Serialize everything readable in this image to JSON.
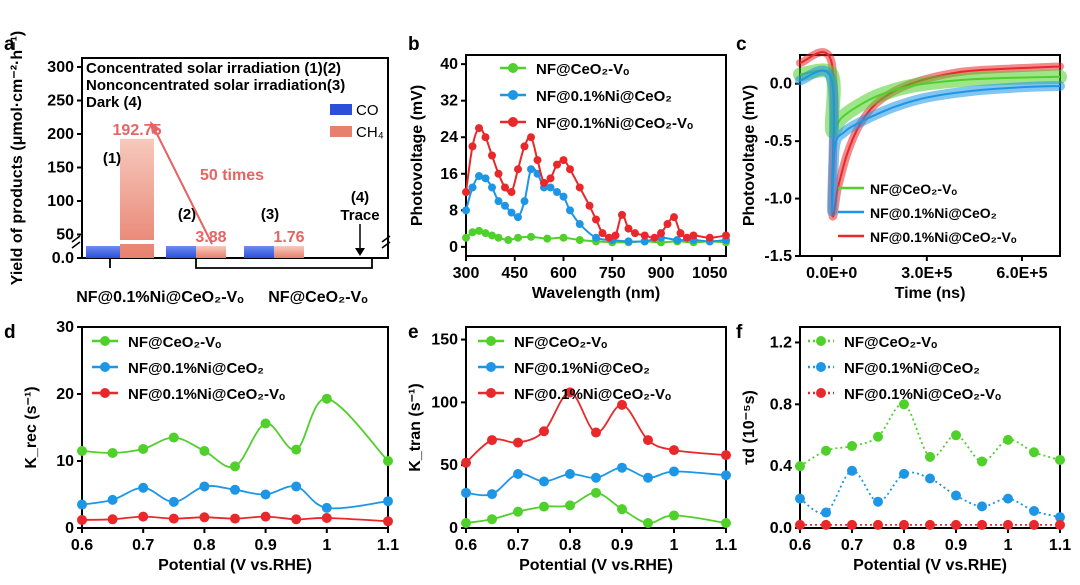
{
  "panel_labels": [
    "a",
    "b",
    "c",
    "d",
    "e",
    "f"
  ],
  "colors": {
    "green": "#4fd02a",
    "blue": "#1e96e6",
    "red": "#e8282a",
    "co_bar": "#2b4fd8",
    "ch4_bar": "#e8806e",
    "annotation": "#e86464"
  },
  "chart_data": [
    {
      "id": "a",
      "type": "bar",
      "ylabel": "Yield of products (μmol·cm⁻²·h⁻¹)",
      "yticks": [
        "0.0",
        "50",
        "100",
        "150",
        "200",
        "250",
        "300"
      ],
      "legend_text": [
        "Concentrated solar irradiation (1)(2)",
        "Nonconcentrated solar irradiation(3)",
        "Dark (4)"
      ],
      "legend": [
        "CO",
        "CH₄"
      ],
      "groups": [
        {
          "label": "(1)",
          "co": 0.6,
          "ch4": 192.75,
          "value_label": "192.75"
        },
        {
          "label": "(2)",
          "co": 0.3,
          "ch4": 3.88,
          "value_label": "3.88"
        },
        {
          "label": "(3)",
          "co": 0.2,
          "ch4": 1.76,
          "value_label": "1.76"
        },
        {
          "label": "(4)",
          "co": 0,
          "ch4": 0,
          "value_label": "Trace"
        }
      ],
      "annotation": "50 times",
      "xlabels": [
        "NF@0.1%Ni@CeO₂-Vₒ",
        "NF@CeO₂-Vₒ"
      ]
    },
    {
      "id": "b",
      "type": "line",
      "xlabel": "Wavelength (nm)",
      "ylabel": "Photovoltage (mV)",
      "xlim": [
        300,
        1100
      ],
      "ylim": [
        -2,
        42
      ],
      "xticks": [
        300,
        450,
        600,
        750,
        900,
        1050
      ],
      "yticks": [
        0,
        8,
        16,
        24,
        32,
        40
      ],
      "series": [
        {
          "name": "NF@CeO₂-Vₒ",
          "color": "green",
          "points": [
            [
              300,
              2
            ],
            [
              320,
              3.2
            ],
            [
              340,
              3.5
            ],
            [
              360,
              3
            ],
            [
              380,
              2.5
            ],
            [
              400,
              2
            ],
            [
              430,
              1.5
            ],
            [
              460,
              2
            ],
            [
              500,
              2.2
            ],
            [
              550,
              1.8
            ],
            [
              600,
              2
            ],
            [
              650,
              1.5
            ],
            [
              700,
              1.2
            ],
            [
              750,
              1
            ],
            [
              800,
              1
            ],
            [
              850,
              1.2
            ],
            [
              900,
              1
            ],
            [
              950,
              1.2
            ],
            [
              1000,
              1
            ],
            [
              1050,
              1.2
            ],
            [
              1100,
              1
            ]
          ]
        },
        {
          "name": "NF@0.1%Ni@CeO₂",
          "color": "blue",
          "points": [
            [
              300,
              8
            ],
            [
              320,
              13
            ],
            [
              340,
              15.5
            ],
            [
              360,
              15
            ],
            [
              380,
              13
            ],
            [
              400,
              10
            ],
            [
              420,
              9
            ],
            [
              440,
              7.5
            ],
            [
              460,
              6.5
            ],
            [
              480,
              10
            ],
            [
              500,
              17
            ],
            [
              520,
              16
            ],
            [
              540,
              13
            ],
            [
              560,
              13
            ],
            [
              580,
              12
            ],
            [
              600,
              11
            ],
            [
              620,
              8
            ],
            [
              650,
              5
            ],
            [
              700,
              2
            ],
            [
              750,
              1.5
            ],
            [
              800,
              1.2
            ],
            [
              850,
              1.2
            ],
            [
              900,
              2
            ],
            [
              950,
              1.5
            ],
            [
              1000,
              1.5
            ],
            [
              1050,
              1.2
            ],
            [
              1100,
              1.5
            ]
          ]
        },
        {
          "name": "NF@0.1%Ni@CeO₂-Vₒ",
          "color": "red",
          "points": [
            [
              300,
              12
            ],
            [
              320,
              22
            ],
            [
              340,
              26
            ],
            [
              360,
              24
            ],
            [
              380,
              20
            ],
            [
              400,
              16
            ],
            [
              420,
              13
            ],
            [
              440,
              12
            ],
            [
              460,
              17
            ],
            [
              480,
              22
            ],
            [
              500,
              24
            ],
            [
              520,
              19
            ],
            [
              540,
              14
            ],
            [
              560,
              15
            ],
            [
              580,
              18
            ],
            [
              600,
              19
            ],
            [
              620,
              17
            ],
            [
              650,
              13
            ],
            [
              680,
              9
            ],
            [
              700,
              6
            ],
            [
              720,
              3
            ],
            [
              740,
              2
            ],
            [
              760,
              2.5
            ],
            [
              780,
              7
            ],
            [
              800,
              4
            ],
            [
              820,
              3
            ],
            [
              850,
              2.5
            ],
            [
              880,
              2
            ],
            [
              900,
              3
            ],
            [
              920,
              5
            ],
            [
              940,
              6.5
            ],
            [
              960,
              3
            ],
            [
              980,
              2
            ],
            [
              1000,
              2.5
            ],
            [
              1050,
              2
            ],
            [
              1100,
              2.5
            ]
          ]
        }
      ]
    },
    {
      "id": "c",
      "type": "line",
      "xlabel": "Time (ns)",
      "ylabel": "Photovoltage (mV)",
      "xlim": [
        -100000,
        720000
      ],
      "ylim": [
        -1.5,
        0.25
      ],
      "xticks": [
        0,
        300000,
        600000
      ],
      "xtick_labels": [
        "0.0E+0",
        "3.0E+5",
        "6.0E+5"
      ],
      "yticks": [
        0.0,
        -0.5,
        -1.0,
        -1.5
      ],
      "ytick_labels": [
        "0.0",
        "-0.5",
        "-1.0",
        "-1.5"
      ],
      "series": [
        {
          "name": "NF@CeO₂-Vₒ",
          "color": "green",
          "points": [
            [
              -100000,
              0.08
            ],
            [
              0,
              0.08
            ],
            [
              1000,
              -0.4
            ],
            [
              30000,
              -0.3
            ],
            [
              80000,
              -0.2
            ],
            [
              150000,
              -0.1
            ],
            [
              250000,
              -0.02
            ],
            [
              400000,
              0.03
            ],
            [
              550000,
              0.05
            ],
            [
              720000,
              0.06
            ]
          ]
        },
        {
          "name": "NF@0.1%Ni@CeO₂",
          "color": "blue",
          "points": [
            [
              -100000,
              0.03
            ],
            [
              0,
              0.03
            ],
            [
              1000,
              -1.1
            ],
            [
              10000,
              -0.55
            ],
            [
              40000,
              -0.42
            ],
            [
              100000,
              -0.32
            ],
            [
              200000,
              -0.2
            ],
            [
              300000,
              -0.12
            ],
            [
              450000,
              -0.06
            ],
            [
              600000,
              -0.03
            ],
            [
              720000,
              -0.02
            ]
          ]
        },
        {
          "name": "NF@0.1%Ni@CeO₂-Vₒ",
          "color": "red",
          "points": [
            [
              -100000,
              0.18
            ],
            [
              0,
              0.18
            ],
            [
              1000,
              -1.1
            ],
            [
              20000,
              -0.9
            ],
            [
              50000,
              -0.6
            ],
            [
              90000,
              -0.35
            ],
            [
              150000,
              -0.15
            ],
            [
              250000,
              0.0
            ],
            [
              400000,
              0.1
            ],
            [
              550000,
              0.13
            ],
            [
              720000,
              0.15
            ]
          ]
        }
      ]
    },
    {
      "id": "d",
      "type": "line",
      "xlabel": "Potential (V vs.RHE)",
      "ylabel": "K_rec (s⁻¹)",
      "xlim": [
        0.6,
        1.1
      ],
      "ylim": [
        0,
        30
      ],
      "xticks": [
        0.6,
        0.7,
        0.8,
        0.9,
        1.0,
        1.1
      ],
      "yticks": [
        0,
        10,
        20,
        30
      ],
      "series": [
        {
          "name": "NF@CeO₂-Vₒ",
          "color": "green",
          "x": [
            0.6,
            0.65,
            0.7,
            0.75,
            0.8,
            0.85,
            0.9,
            0.95,
            1.0,
            1.1
          ],
          "values": [
            11.5,
            11.2,
            11.8,
            13.5,
            11.5,
            9.2,
            15.6,
            11.7,
            19.3,
            10.0
          ]
        },
        {
          "name": "NF@0.1%Ni@CeO₂",
          "color": "blue",
          "x": [
            0.6,
            0.65,
            0.7,
            0.75,
            0.8,
            0.85,
            0.9,
            0.95,
            1.0,
            1.1
          ],
          "values": [
            3.5,
            4.2,
            6.0,
            3.9,
            6.2,
            5.7,
            5.0,
            6.2,
            3.0,
            4.0
          ]
        },
        {
          "name": "NF@0.1%Ni@CeO₂-Vₒ",
          "color": "red",
          "x": [
            0.6,
            0.65,
            0.7,
            0.75,
            0.8,
            0.85,
            0.9,
            0.95,
            1.0,
            1.1
          ],
          "values": [
            1.2,
            1.3,
            1.7,
            1.4,
            1.6,
            1.4,
            1.7,
            1.3,
            1.5,
            1.0
          ]
        }
      ]
    },
    {
      "id": "e",
      "type": "line",
      "xlabel": "Potential (V vs.RHE)",
      "ylabel": "K_tran (s⁻¹)",
      "xlim": [
        0.6,
        1.1
      ],
      "ylim": [
        0,
        160
      ],
      "xticks": [
        0.6,
        0.7,
        0.8,
        0.9,
        1.0,
        1.1
      ],
      "yticks": [
        0,
        50,
        100,
        150
      ],
      "series": [
        {
          "name": "NF@CeO₂-Vₒ",
          "color": "green",
          "x": [
            0.6,
            0.65,
            0.7,
            0.75,
            0.8,
            0.85,
            0.9,
            0.95,
            1.0,
            1.1
          ],
          "values": [
            4,
            7,
            13,
            17,
            18,
            28,
            15,
            4,
            10,
            4
          ]
        },
        {
          "name": "NF@0.1%Ni@CeO₂",
          "color": "blue",
          "x": [
            0.6,
            0.65,
            0.7,
            0.75,
            0.8,
            0.85,
            0.9,
            0.95,
            1.0,
            1.1
          ],
          "values": [
            28,
            27,
            43,
            37,
            43,
            40,
            48,
            40,
            45,
            42
          ]
        },
        {
          "name": "NF@0.1%Ni@CeO₂-Vₒ",
          "color": "red",
          "x": [
            0.6,
            0.65,
            0.7,
            0.75,
            0.8,
            0.85,
            0.9,
            0.95,
            1.0,
            1.1
          ],
          "values": [
            52,
            70,
            68,
            77,
            108,
            76,
            98,
            70,
            62,
            58
          ]
        }
      ]
    },
    {
      "id": "f",
      "type": "line",
      "xlabel": "Potential (V vs.RHE)",
      "ylabel": "τd (10⁻⁵s)",
      "xlim": [
        0.6,
        1.1
      ],
      "ylim": [
        0,
        1.3
      ],
      "xticks": [
        0.6,
        0.7,
        0.8,
        0.9,
        1.0,
        1.1
      ],
      "yticks": [
        0.0,
        0.4,
        0.8,
        1.2
      ],
      "ytick_labels": [
        "0.0",
        "0.4",
        "0.8",
        "1.2"
      ],
      "series": [
        {
          "name": "NF@CeO₂-Vₒ",
          "color": "green",
          "x": [
            0.6,
            0.65,
            0.7,
            0.75,
            0.8,
            0.85,
            0.9,
            0.95,
            1.0,
            1.05,
            1.1
          ],
          "values": [
            0.4,
            0.5,
            0.53,
            0.59,
            0.8,
            0.46,
            0.6,
            0.43,
            0.57,
            0.49,
            0.44
          ]
        },
        {
          "name": "NF@0.1%Ni@CeO₂",
          "color": "blue",
          "x": [
            0.6,
            0.65,
            0.7,
            0.75,
            0.8,
            0.85,
            0.9,
            0.95,
            1.0,
            1.05,
            1.1
          ],
          "values": [
            0.19,
            0.1,
            0.37,
            0.17,
            0.35,
            0.32,
            0.21,
            0.14,
            0.19,
            0.11,
            0.07
          ]
        },
        {
          "name": "NF@0.1%Ni@CeO₂-Vₒ",
          "color": "red",
          "x": [
            0.6,
            0.65,
            0.7,
            0.75,
            0.8,
            0.85,
            0.9,
            0.95,
            1.0,
            1.05,
            1.1
          ],
          "values": [
            0.02,
            0.02,
            0.02,
            0.02,
            0.02,
            0.02,
            0.02,
            0.02,
            0.02,
            0.02,
            0.02
          ]
        }
      ]
    }
  ]
}
